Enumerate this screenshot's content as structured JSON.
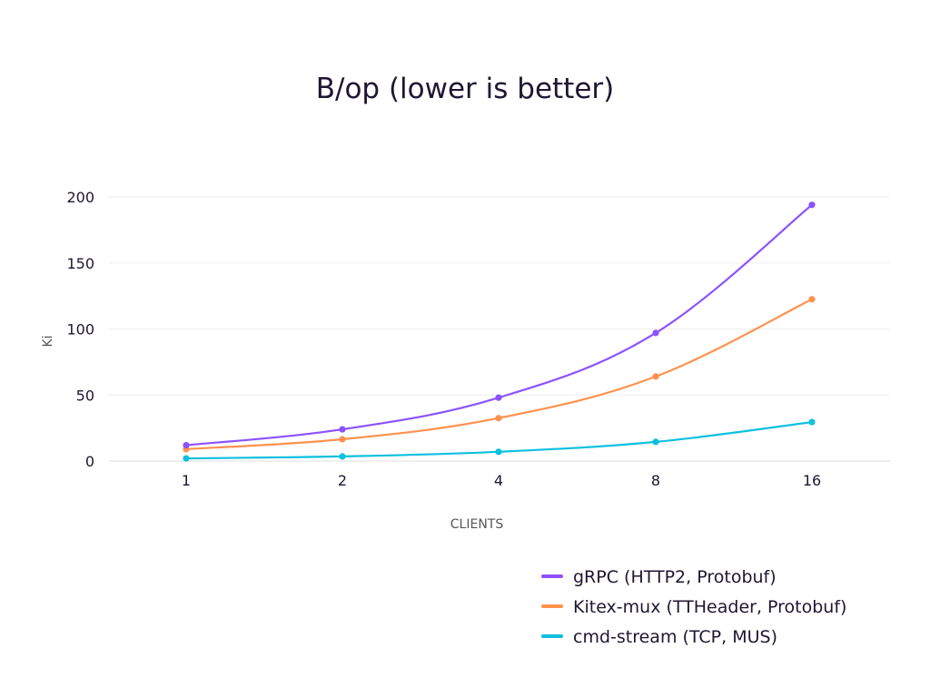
{
  "chart_data": {
    "type": "line",
    "title": "B/op (lower is better)",
    "xlabel": "CLIENTS",
    "ylabel": "Ki",
    "categories": [
      "1",
      "2",
      "4",
      "8",
      "16"
    ],
    "yticks": [
      "0",
      "50",
      "100",
      "150",
      "200"
    ],
    "ylim": [
      0,
      200
    ],
    "grid": true,
    "legend_position": "bottom-right",
    "series": [
      {
        "name": "gRPC (HTTP2, Protobuf)",
        "color": "#8c52ff",
        "values": [
          12,
          24,
          48,
          97,
          194
        ]
      },
      {
        "name": "Kitex-mux (TTHeader, Protobuf)",
        "color": "#ff914d",
        "values": [
          9,
          16.5,
          32.5,
          64,
          122.5
        ]
      },
      {
        "name": "cmd-stream (TCP, MUS)",
        "color": "#0cc0df",
        "values": [
          2,
          3.5,
          7,
          14.5,
          29.5
        ]
      }
    ]
  }
}
